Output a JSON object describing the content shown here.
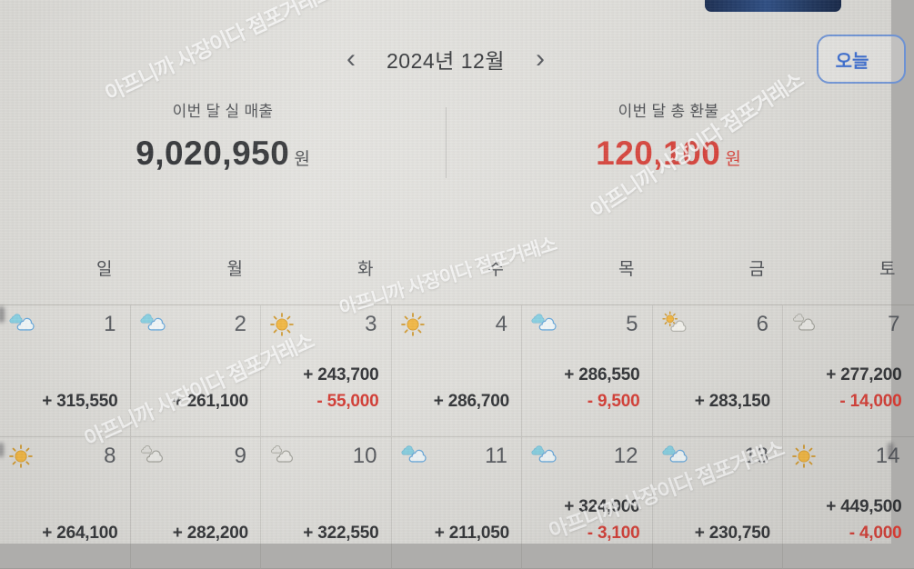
{
  "watermark": {
    "text": "아프니까 사장이다 점포거래소"
  },
  "header": {
    "prev_label": "‹",
    "title": "2024년 12월",
    "next_label": "›",
    "today_button": "오늘"
  },
  "summary": {
    "sales": {
      "label": "이번 달 실 매출",
      "value": "9,020,950",
      "unit": "원"
    },
    "refund": {
      "label": "이번 달 총 환불",
      "value": "120,100",
      "unit": "원"
    }
  },
  "calendar": {
    "weekday_headers": [
      "일",
      "월",
      "화",
      "수",
      "목",
      "금",
      "토"
    ],
    "days": [
      {
        "number": "1",
        "weather": "partly-cloudy",
        "sales": "+ 315,550",
        "refund": null
      },
      {
        "number": "2",
        "weather": "partly-cloudy",
        "sales": "+ 261,100",
        "refund": null
      },
      {
        "number": "3",
        "weather": "sunny",
        "sales": "+ 243,700",
        "refund": "- 55,000"
      },
      {
        "number": "4",
        "weather": "sunny",
        "sales": "+ 286,700",
        "refund": null
      },
      {
        "number": "5",
        "weather": "partly-cloudy",
        "sales": "+ 286,550",
        "refund": "- 9,500"
      },
      {
        "number": "6",
        "weather": "sun-cloud",
        "sales": "+ 283,150",
        "refund": null
      },
      {
        "number": "7",
        "weather": "cloudy",
        "sales": "+ 277,200",
        "refund": "- 14,000"
      },
      {
        "number": "8",
        "weather": "sunny",
        "sales": "+ 264,100",
        "refund": null
      },
      {
        "number": "9",
        "weather": "cloudy",
        "sales": "+ 282,200",
        "refund": null
      },
      {
        "number": "10",
        "weather": "cloudy",
        "sales": "+ 322,550",
        "refund": null
      },
      {
        "number": "11",
        "weather": "partly-cloudy",
        "sales": "+ 211,050",
        "refund": null
      },
      {
        "number": "12",
        "weather": "partly-cloudy",
        "sales": "+ 324,900",
        "refund": "- 3,100"
      },
      {
        "number": "13",
        "weather": "partly-cloudy",
        "sales": "+ 230,750",
        "refund": null
      },
      {
        "number": "14",
        "weather": "sunny",
        "sales": "+ 449,500",
        "refund": "- 4,000"
      }
    ]
  },
  "colors": {
    "accent_blue": "#3a6bcd",
    "refund_red": "#d43a32",
    "sales_text": "#2f3134"
  }
}
